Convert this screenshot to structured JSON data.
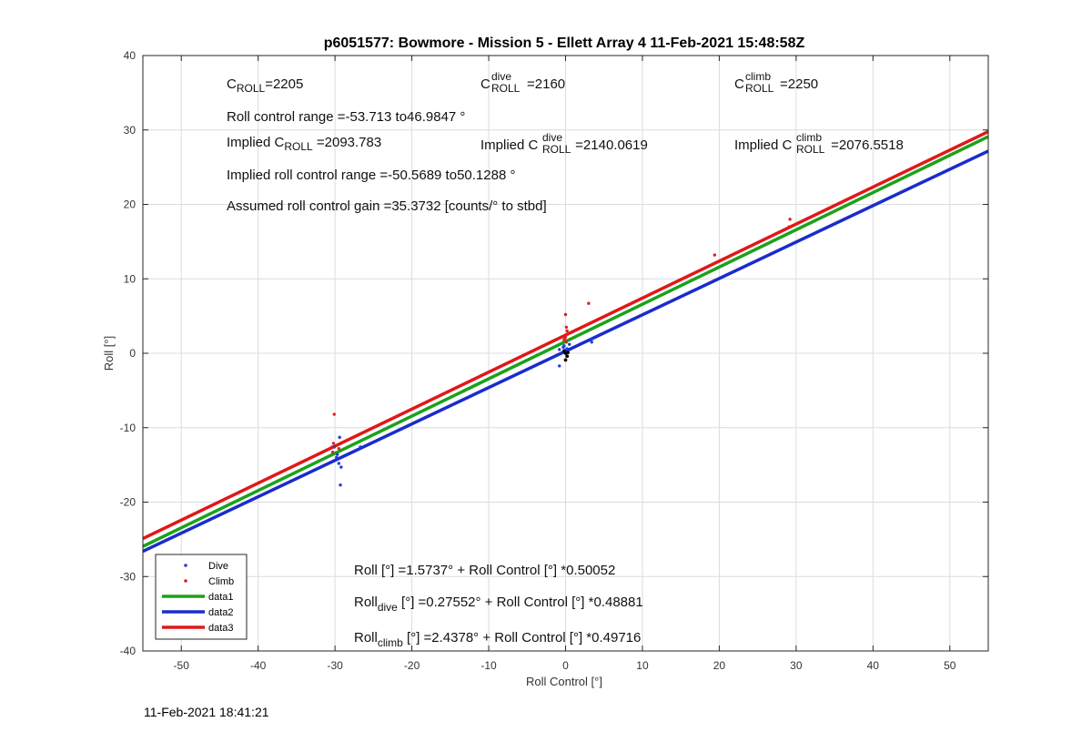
{
  "chart_data": {
    "type": "scatter",
    "title": "p6051577: Bowmore - Mission 5 - Ellett Array 4 11-Feb-2021 15:48:58Z",
    "xlabel": "Roll Control [°]",
    "ylabel": "Roll [°]",
    "xlim": [
      -55,
      55
    ],
    "ylim": [
      -40,
      40
    ],
    "xticks": [
      -50,
      -40,
      -30,
      -20,
      -10,
      0,
      10,
      20,
      30,
      40,
      50
    ],
    "yticks": [
      -40,
      -30,
      -20,
      -10,
      0,
      10,
      20,
      30,
      40
    ],
    "grid": true,
    "legend_position": "bottom-left",
    "timestamp": "11-Feb-2021 18:41:21",
    "annotations": {
      "c_roll": {
        "base": "C",
        "sub": "ROLL",
        "value": "=2205"
      },
      "c_roll_dive": {
        "base": "C",
        "sup": "dive",
        "sub": "ROLL",
        "value": "=2160"
      },
      "c_roll_climb": {
        "base": "C",
        "sup": "climb",
        "sub": "ROLL",
        "value": "=2250"
      },
      "roll_control_range": "Roll control range =-53.713 to46.9847 °",
      "implied_c_roll": {
        "prefix": "Implied C",
        "sub": "ROLL",
        "value": " =2093.783"
      },
      "implied_c_roll_dive": {
        "prefix": "Implied C",
        "sup": "dive",
        "sub": "ROLL",
        "value": " =2140.0619"
      },
      "implied_c_roll_climb": {
        "prefix": "Implied C",
        "sup": "climb",
        "sub": "ROLL",
        "value": " =2076.5518"
      },
      "implied_range": "Implied roll control range =-50.5689 to50.1288 °",
      "gain": "Assumed roll control gain =35.3732 [counts/° to stbd]",
      "fit_all": "Roll [°] =1.5737° + Roll Control [°] *0.50052",
      "fit_dive": {
        "base": "Roll",
        "sub": "dive",
        "rest": " [°] =0.27552° + Roll Control [°] *0.48881"
      },
      "fit_climb": {
        "base": "Roll",
        "sub": "climb",
        "rest": " [°] =2.4378° + Roll Control [°] *0.49716"
      }
    },
    "series": [
      {
        "name": "Dive",
        "kind": "points",
        "color": "#1f3fd6",
        "points": [
          [
            -29.8,
            -14.0
          ],
          [
            -29.5,
            -14.8
          ],
          [
            -29.2,
            -15.3
          ],
          [
            -29.4,
            -11.3
          ],
          [
            -29.3,
            -17.7
          ],
          [
            -29.7,
            -13.6
          ],
          [
            -30.1,
            -12.6
          ],
          [
            -26.7,
            -12.6
          ],
          [
            -0.8,
            -1.7
          ],
          [
            -0.8,
            0.5
          ],
          [
            -0.2,
            1.0
          ],
          [
            0.2,
            0.6
          ],
          [
            0.5,
            1.2
          ],
          [
            3.4,
            1.5
          ],
          [
            3.4,
            1.9
          ],
          [
            0.0,
            0.4
          ],
          [
            -0.3,
            0.8
          ]
        ]
      },
      {
        "name": "Climb",
        "kind": "points",
        "color": "#e02020",
        "points": [
          [
            -30.1,
            -8.2
          ],
          [
            -30.4,
            -12.6
          ],
          [
            -30.3,
            -13.3
          ],
          [
            -30.2,
            -12.1
          ],
          [
            -29.5,
            -12.8
          ],
          [
            0.0,
            5.2
          ],
          [
            3.0,
            6.7
          ],
          [
            0.1,
            3.5
          ],
          [
            0.2,
            3.0
          ],
          [
            0.3,
            2.6
          ],
          [
            0.0,
            2.2
          ],
          [
            -0.2,
            1.8
          ],
          [
            0.1,
            1.5
          ],
          [
            -0.1,
            2.0
          ],
          [
            19.4,
            13.2
          ],
          [
            29.2,
            18.0
          ],
          [
            29.1,
            17.0
          ]
        ]
      },
      {
        "name": "data1",
        "kind": "line",
        "color": "#1aa21a",
        "intercept": 1.5737,
        "slope": 0.50052
      },
      {
        "name": "data2",
        "kind": "line",
        "color": "#1a2ccc",
        "intercept": 0.27552,
        "slope": 0.48881
      },
      {
        "name": "data3",
        "kind": "line",
        "color": "#e01818",
        "intercept": 2.4378,
        "slope": 0.49716
      }
    ],
    "extra_points": {
      "color": "#000000",
      "points": [
        [
          0.0,
          0.0
        ],
        [
          0.2,
          -0.4
        ],
        [
          0.0,
          -0.9
        ],
        [
          -0.2,
          0.3
        ],
        [
          0.3,
          0.1
        ]
      ]
    }
  }
}
